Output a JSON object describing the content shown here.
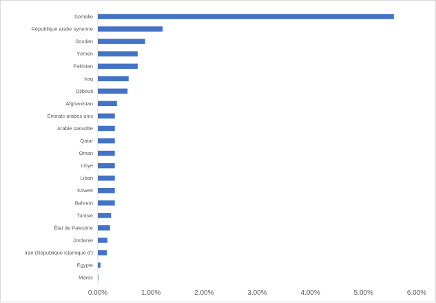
{
  "chart_data": {
    "type": "bar",
    "orientation": "horizontal",
    "categories": [
      "Somalie",
      "République arabe syrienne",
      "Soudan",
      "Yémen",
      "Pakistan",
      "Iraq",
      "Djibouti",
      "Afghanistan",
      "Émirats arabes unis",
      "Arabie saoudite",
      "Qatar",
      "Oman",
      "Libye",
      "Liban",
      "Koweït",
      "Bahreïn",
      "Tunisie",
      "État de Palestine",
      "Jordanie",
      "Iran (République islamique d')",
      "Égypte",
      "Maroc"
    ],
    "values": [
      5.57,
      1.22,
      0.89,
      0.75,
      0.75,
      0.58,
      0.56,
      0.36,
      0.32,
      0.32,
      0.32,
      0.32,
      0.32,
      0.32,
      0.32,
      0.32,
      0.25,
      0.23,
      0.18,
      0.17,
      0.05,
      0.01
    ],
    "unit": "%",
    "xlim": [
      0,
      6
    ],
    "x_ticks": [
      "0.00%",
      "1.00%",
      "2.00%",
      "3.00%",
      "4.00%",
      "5.00%",
      "6.00%"
    ],
    "x_tick_values": [
      0,
      1,
      2,
      3,
      4,
      5,
      6
    ],
    "title": "",
    "xlabel": "",
    "ylabel": "",
    "grid": false,
    "legend": "none",
    "bar_color": "#4472c4"
  }
}
